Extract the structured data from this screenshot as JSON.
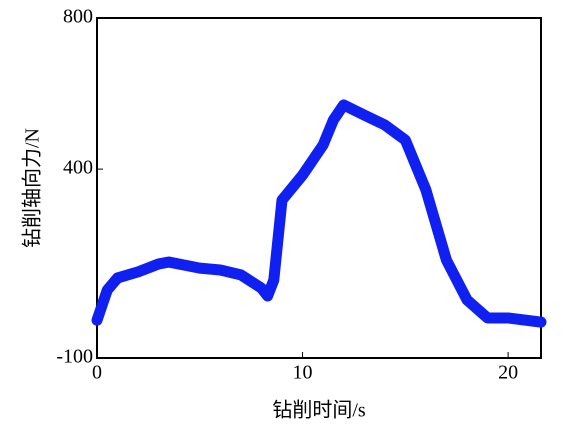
{
  "chart_data": {
    "type": "line",
    "x_label": "钻削时间/s",
    "y_label": "钻削轴向力/N",
    "x": [
      0,
      0.5,
      1,
      2,
      3,
      3.5,
      5,
      6,
      7,
      8,
      8.3,
      8.6,
      9,
      10,
      11,
      11.5,
      12,
      13,
      14,
      15,
      16,
      17,
      18,
      19,
      20,
      21.6
    ],
    "series": [
      {
        "color": "#1020f0",
        "values": [
          0,
          80,
          112,
          128,
          149,
          154,
          138,
          133,
          120,
          85,
          64,
          106,
          318,
          384,
          464,
          530,
          570,
          543,
          517,
          477,
          345,
          159,
          54,
          6,
          6,
          -5
        ]
      }
    ],
    "xlim": [
      0,
      21.6
    ],
    "ylim": [
      -100,
      800
    ],
    "xticks": [
      0,
      10,
      20
    ],
    "yticks": [
      -100,
      400,
      800
    ]
  }
}
